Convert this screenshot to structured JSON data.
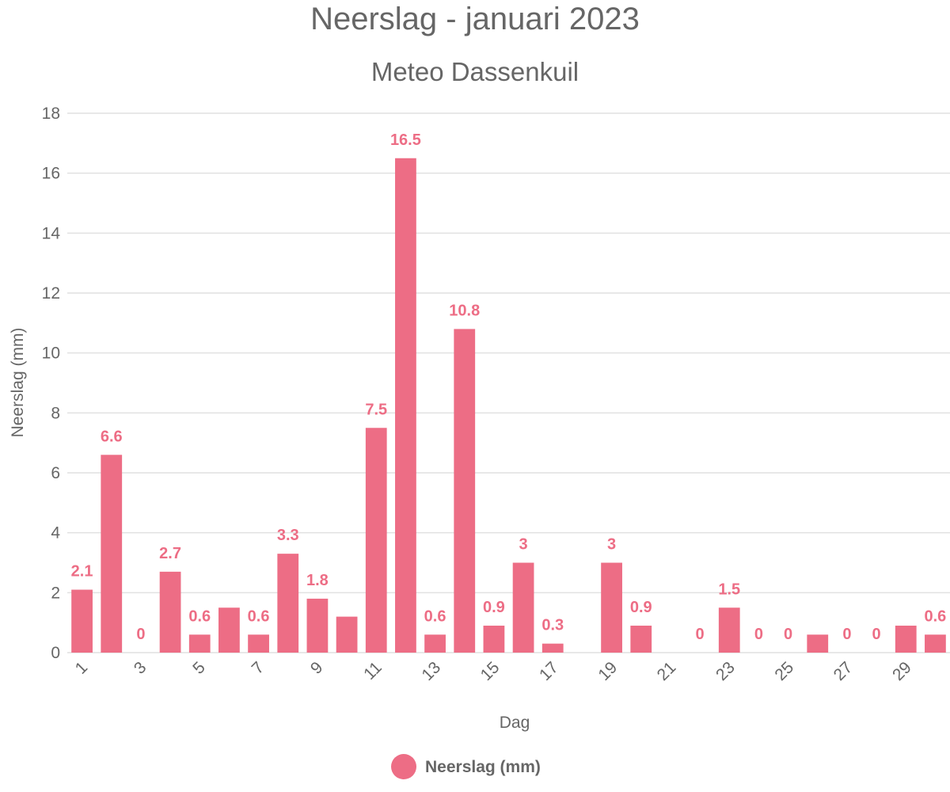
{
  "chart_data": {
    "type": "bar",
    "title": "Neerslag - januari 2023",
    "subtitle": "Meteo Dassenkuil",
    "xlabel": "Dag",
    "ylabel": "Neerslag (mm)",
    "ylim": [
      0,
      18
    ],
    "yticks": [
      0,
      2,
      4,
      6,
      8,
      10,
      12,
      14,
      16,
      18
    ],
    "xtick_labels": [
      "1",
      "3",
      "5",
      "7",
      "9",
      "11",
      "13",
      "15",
      "17",
      "19",
      "21",
      "23",
      "25",
      "27",
      "29"
    ],
    "categories": [
      "1",
      "2",
      "3",
      "4",
      "5",
      "6",
      "7",
      "8",
      "9",
      "10",
      "11",
      "12",
      "13",
      "14",
      "15",
      "16",
      "17",
      "18",
      "19",
      "20",
      "21",
      "22",
      "23",
      "24",
      "25",
      "26",
      "27",
      "28",
      "29",
      "30"
    ],
    "series": [
      {
        "name": "Neerslag (mm)",
        "color": "#ed6d85",
        "values": [
          2.1,
          6.6,
          0,
          2.7,
          0.6,
          1.5,
          0.6,
          3.3,
          1.8,
          1.2,
          7.5,
          16.5,
          0.6,
          10.8,
          0.9,
          3,
          0.3,
          null,
          3,
          0.9,
          null,
          0,
          1.5,
          0,
          0,
          0.6,
          0,
          0,
          0.9,
          0.6
        ],
        "data_labels": [
          "2.1",
          "6.6",
          "0",
          "2.7",
          "0.6",
          "",
          "0.6",
          "3.3",
          "1.8",
          "",
          "7.5",
          "16.5",
          "0.6",
          "10.8",
          "0.9",
          "3",
          "0.3",
          "",
          "3",
          "0.9",
          "",
          "0",
          "1.5",
          "0",
          "0",
          "",
          "0",
          "0",
          "",
          "0.6"
        ]
      }
    ],
    "grid": true,
    "legend": {
      "position": "bottom",
      "label": "Neerslag (mm)"
    }
  }
}
